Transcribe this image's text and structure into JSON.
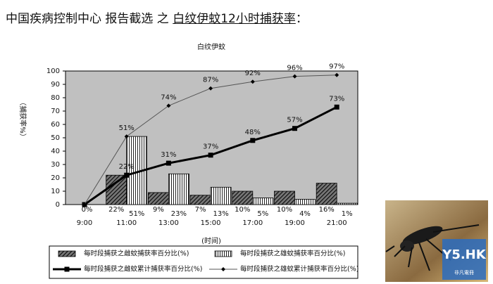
{
  "heading": {
    "prefix": "中国疾病控制中心 报告截选 之 ",
    "highlight": "白纹伊蚊12小时捕获率",
    "suffix": "："
  },
  "chart_data": {
    "type": "bar",
    "title": "白纹伊蚊",
    "y_label": "（捕获率%）",
    "x_label": "(时间)",
    "categories": [
      "9:00",
      "11:00",
      "13:00",
      "15:00",
      "17:00",
      "19:00",
      "21:00"
    ],
    "ylim": [
      0,
      100
    ],
    "yticks": [
      0,
      10,
      20,
      30,
      40,
      50,
      60,
      70,
      80,
      90,
      100
    ],
    "grid": false,
    "series": [
      {
        "name": "每时段捕获之雌蚊捕获率百分比(%)",
        "type": "bar",
        "color": "#333333",
        "pattern": "hatch",
        "values": [
          0,
          22,
          9,
          7,
          10,
          10,
          16
        ],
        "value_labels": [
          "0%",
          "22%",
          "9%",
          "7%",
          "10%",
          "10%",
          "16%"
        ]
      },
      {
        "name": "每时段捕获之雄蚊捕获率百分比(%)",
        "type": "bar",
        "color": "#ffffff",
        "pattern": "vertical",
        "values": [
          0,
          51,
          23,
          13,
          5,
          4,
          1
        ],
        "value_labels": [
          null,
          "51%",
          "23%",
          "13%",
          "5%",
          "4%",
          "1%"
        ]
      },
      {
        "name": "每时段捕获之雌蚊累计捕获率百分比(%)",
        "type": "line",
        "color": "#000000",
        "values": [
          0,
          22,
          31,
          37,
          48,
          57,
          73
        ],
        "value_labels": [
          null,
          "22%",
          "31%",
          "37%",
          "48%",
          "57%",
          "73%"
        ]
      },
      {
        "name": "每时段捕获之雄蚊累计捕获率百分比(%)",
        "type": "line",
        "color": "#555555",
        "values": [
          0,
          51,
          74,
          87,
          92,
          96,
          97
        ],
        "value_labels": [
          null,
          "51%",
          "74%",
          "87%",
          "92%",
          "96%",
          "97%"
        ]
      }
    ]
  },
  "photo": {
    "logo": "Y5.HK",
    "logo_sub": "非凡電冊"
  }
}
